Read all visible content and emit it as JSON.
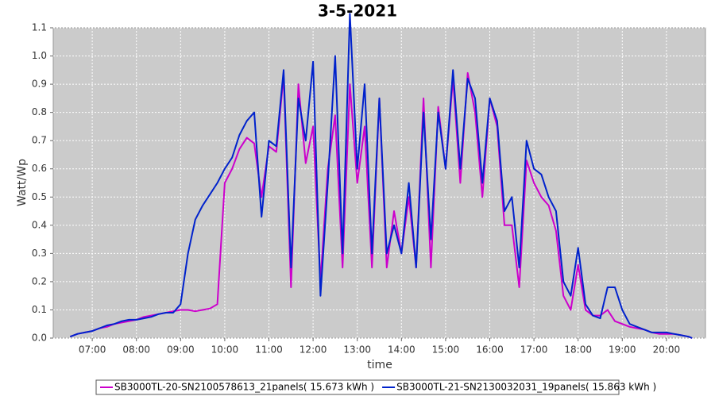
{
  "chart_data": {
    "type": "line",
    "title": "3-5-2021",
    "x_label": "time",
    "y_label": "Watt/Wp",
    "x": [
      "06:30",
      "06:40",
      "06:50",
      "07:00",
      "07:10",
      "07:20",
      "07:30",
      "07:40",
      "07:50",
      "08:00",
      "08:10",
      "08:20",
      "08:30",
      "08:40",
      "08:50",
      "09:00",
      "09:10",
      "09:20",
      "09:30",
      "09:40",
      "09:50",
      "10:00",
      "10:10",
      "10:20",
      "10:30",
      "10:40",
      "10:50",
      "11:00",
      "11:10",
      "11:20",
      "11:30",
      "11:40",
      "11:50",
      "12:00",
      "12:10",
      "12:20",
      "12:30",
      "12:40",
      "12:50",
      "13:00",
      "13:10",
      "13:20",
      "13:30",
      "13:40",
      "13:50",
      "14:00",
      "14:10",
      "14:20",
      "14:30",
      "14:40",
      "14:50",
      "15:00",
      "15:10",
      "15:20",
      "15:30",
      "15:40",
      "15:50",
      "16:00",
      "16:10",
      "16:20",
      "16:30",
      "16:40",
      "16:50",
      "17:00",
      "17:10",
      "17:20",
      "17:30",
      "17:40",
      "17:50",
      "18:00",
      "18:10",
      "18:20",
      "18:30",
      "18:40",
      "18:50",
      "19:00",
      "19:10",
      "19:20",
      "19:30",
      "19:40",
      "19:50",
      "20:00",
      "20:10",
      "20:20",
      "20:30",
      "20:35"
    ],
    "series": [
      {
        "name": "SB3000TL-20-SN2100578613_21panels( 15.673 kWh )",
        "color": "#cc00cc",
        "values": [
          0.005,
          0.015,
          0.02,
          0.025,
          0.035,
          0.04,
          0.05,
          0.055,
          0.06,
          0.065,
          0.075,
          0.08,
          0.085,
          0.09,
          0.095,
          0.1,
          0.1,
          0.095,
          0.1,
          0.105,
          0.12,
          0.55,
          0.6,
          0.67,
          0.71,
          0.69,
          0.5,
          0.68,
          0.66,
          0.93,
          0.18,
          0.9,
          0.62,
          0.75,
          0.2,
          0.6,
          0.79,
          0.25,
          0.9,
          0.55,
          0.75,
          0.25,
          0.85,
          0.25,
          0.45,
          0.3,
          0.5,
          0.25,
          0.85,
          0.25,
          0.82,
          0.6,
          0.92,
          0.55,
          0.94,
          0.8,
          0.5,
          0.85,
          0.75,
          0.4,
          0.4,
          0.18,
          0.63,
          0.55,
          0.5,
          0.47,
          0.38,
          0.15,
          0.1,
          0.26,
          0.1,
          0.08,
          0.08,
          0.1,
          0.06,
          0.05,
          0.04,
          0.035,
          0.03,
          0.02,
          0.015,
          0.015,
          0.015,
          0.01,
          0.005,
          0
        ]
      },
      {
        "name": "SB3000TL-21-SN2130032031_19panels( 15.863 kWh )",
        "color": "#0022cc",
        "values": [
          0.005,
          0.015,
          0.02,
          0.025,
          0.035,
          0.045,
          0.05,
          0.06,
          0.065,
          0.065,
          0.07,
          0.075,
          0.085,
          0.09,
          0.09,
          0.12,
          0.3,
          0.42,
          0.47,
          0.51,
          0.55,
          0.6,
          0.64,
          0.72,
          0.77,
          0.8,
          0.43,
          0.7,
          0.68,
          0.95,
          0.25,
          0.85,
          0.7,
          0.98,
          0.15,
          0.55,
          1.0,
          0.3,
          1.15,
          0.6,
          0.9,
          0.3,
          0.85,
          0.3,
          0.4,
          0.3,
          0.55,
          0.25,
          0.8,
          0.35,
          0.8,
          0.6,
          0.95,
          0.6,
          0.92,
          0.85,
          0.55,
          0.85,
          0.77,
          0.45,
          0.5,
          0.25,
          0.7,
          0.6,
          0.58,
          0.5,
          0.45,
          0.2,
          0.15,
          0.32,
          0.12,
          0.08,
          0.07,
          0.18,
          0.18,
          0.1,
          0.05,
          0.04,
          0.03,
          0.02,
          0.02,
          0.02,
          0.015,
          0.01,
          0.005,
          0
        ]
      }
    ],
    "xlim": [
      "06:07",
      "20:53"
    ],
    "xticks": [
      "07:00",
      "08:00",
      "09:00",
      "10:00",
      "11:00",
      "12:00",
      "13:00",
      "14:00",
      "15:00",
      "16:00",
      "17:00",
      "18:00",
      "19:00",
      "20:00"
    ],
    "ylim": [
      0,
      1.1
    ],
    "yticks": [
      {
        "value": 0,
        "label": "0.0"
      },
      0.1,
      0.2,
      0.3,
      0.4,
      0.5,
      0.6,
      0.7,
      0.8,
      0.9,
      {
        "value": 1,
        "label": "1.0"
      },
      1.1
    ],
    "grid": true,
    "legend": "bottom"
  }
}
